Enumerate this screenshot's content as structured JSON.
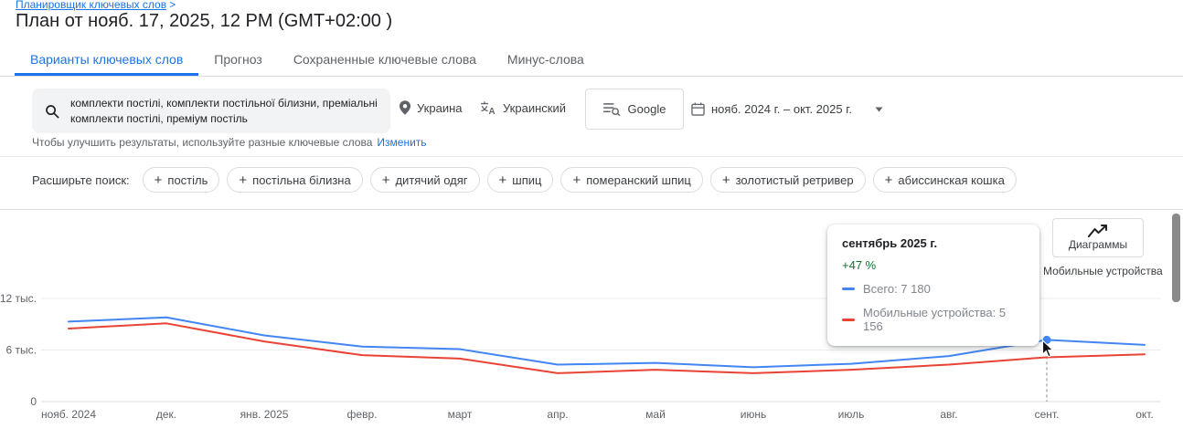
{
  "page": {
    "breadcrumb": "Планировщик ключевых слов",
    "breadcrumb_arrow": ">",
    "title": "План от нояб. 17, 2025, 12 PM (GMT+02:00 )"
  },
  "tabs": [
    {
      "label": "Варианты ключевых слов",
      "active": true
    },
    {
      "label": "Прогноз",
      "active": false
    },
    {
      "label": "Сохраненные ключевые слова",
      "active": false
    },
    {
      "label": "Минус-слова",
      "active": false
    }
  ],
  "filters": {
    "keywords": "комплекти постілі, комплекти постільної білизни, преміальні комплекти постілі, преміум постіль",
    "location": "Украина",
    "language": "Украинский",
    "network": "Google",
    "date_range": "нояб. 2024 г. – окт. 2025 г.",
    "hint": "Чтобы улучшить результаты, используйте разные ключевые слова",
    "hint_link": "Изменить"
  },
  "expand": {
    "label": "Расширьте поиск:",
    "chips": [
      "постіль",
      "постільна білизна",
      "дитячий одяг",
      "шпиц",
      "померанский шпиц",
      "золотистый ретривер",
      "абиссинская кошка"
    ]
  },
  "chart": {
    "diagrams_button": "Диаграммы",
    "hover_series_label": "Мобильные устройства",
    "tooltip": {
      "title": "сентябрь 2025 г.",
      "change": "+47 %",
      "series": [
        {
          "label": "Всего: 7 180",
          "color": "#4285f4"
        },
        {
          "label": "Мобильные устройства: 5 156",
          "color": "#ea4335"
        }
      ]
    }
  },
  "chart_data": {
    "type": "line",
    "title": "",
    "x": [
      "нояб. 2024",
      "дек.",
      "янв. 2025",
      "февр.",
      "март",
      "апр.",
      "май",
      "июнь",
      "июль",
      "авг.",
      "сент.",
      "окт."
    ],
    "series": [
      {
        "name": "Всего",
        "color": "#4285f4",
        "values": [
          9300,
          9800,
          7700,
          6400,
          6100,
          4300,
          4500,
          4000,
          4400,
          5300,
          7180,
          6600
        ]
      },
      {
        "name": "Мобильные устройства",
        "color": "#ea4335",
        "values": [
          8500,
          9100,
          7000,
          5400,
          5000,
          3300,
          3700,
          3300,
          3700,
          4300,
          5156,
          5500
        ]
      }
    ],
    "y_ticks": [
      {
        "value": 0,
        "label": "0"
      },
      {
        "value": 6000,
        "label": "6 тыс."
      },
      {
        "value": 12000,
        "label": "12 тыс."
      }
    ],
    "ylim": [
      0,
      13000
    ],
    "grid": true,
    "highlight_index": 10,
    "highlight_change": "+47 %"
  }
}
